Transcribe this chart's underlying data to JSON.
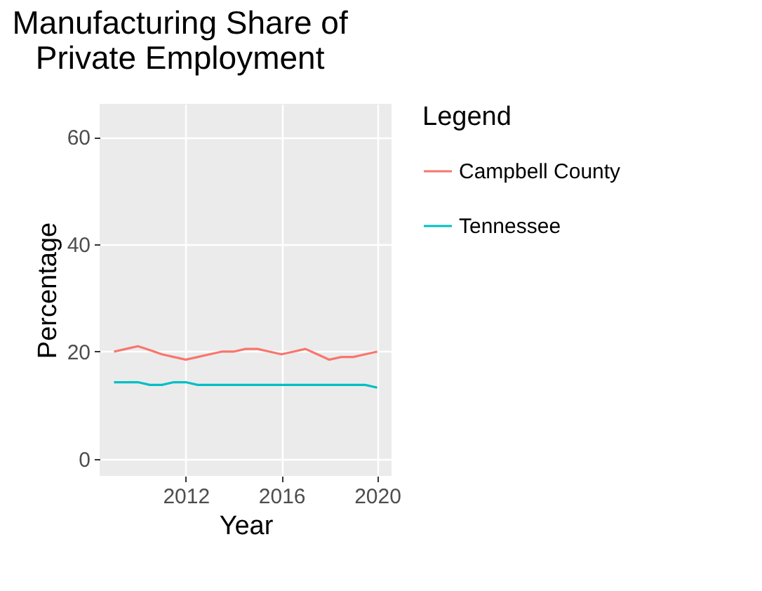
{
  "chart_data": {
    "type": "line",
    "title": "Manufacturing Share of\nPrivate Employment",
    "xlabel": "Year",
    "ylabel": "Percentage",
    "legend_title": "Legend",
    "x": [
      2009,
      2009.5,
      2010,
      2010.5,
      2011,
      2011.5,
      2012,
      2012.5,
      2013,
      2013.5,
      2014,
      2014.5,
      2015,
      2015.5,
      2016,
      2016.5,
      2017,
      2017.5,
      2018,
      2018.5,
      2019,
      2019.5,
      2020
    ],
    "series": [
      {
        "name": "Campbell County",
        "color": "#f8766d",
        "values": [
          20,
          20.5,
          21,
          20.3,
          19.5,
          19,
          18.5,
          19,
          19.5,
          20,
          20,
          20.5,
          20.5,
          20,
          19.5,
          20,
          20.5,
          19.5,
          18.5,
          19,
          19,
          19.5,
          20
        ]
      },
      {
        "name": "Tennessee",
        "color": "#00bfc4",
        "values": [
          14.3,
          14.3,
          14.3,
          13.8,
          13.8,
          14.3,
          14.3,
          13.8,
          13.8,
          13.8,
          13.8,
          13.8,
          13.8,
          13.8,
          13.8,
          13.8,
          13.8,
          13.8,
          13.8,
          13.8,
          13.8,
          13.8,
          13.3
        ]
      }
    ],
    "xlim": [
      2008.4,
      2020.6
    ],
    "xticks": [
      2012,
      2016,
      2020
    ],
    "ylim": [
      -3.15,
      66.15
    ],
    "yticks": [
      0,
      20,
      40,
      60
    ],
    "grid": true,
    "legend": "right"
  }
}
